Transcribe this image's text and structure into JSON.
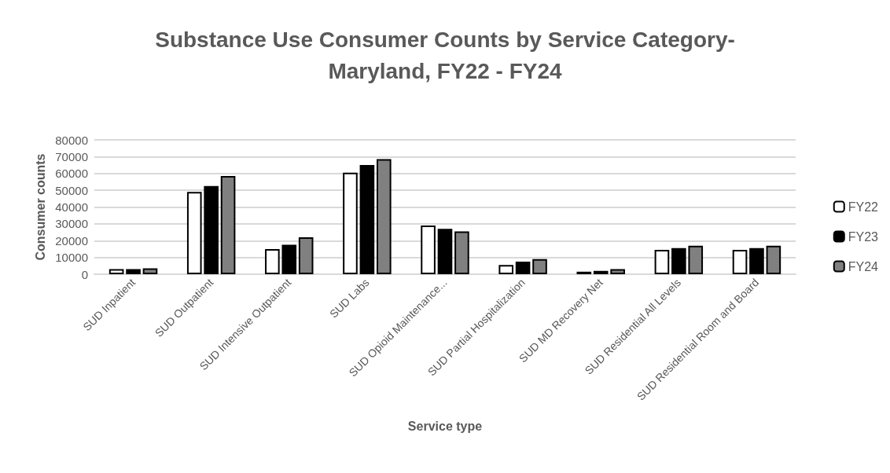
{
  "chart_data": {
    "type": "bar",
    "title": "Substance Use Consumer Counts by Service Category-\nMaryland, FY22 - FY24",
    "xlabel": "Service type",
    "ylabel": "Consumer counts",
    "categories": [
      "SUD Inpatient",
      "SUD Outpatient",
      "SUD Intensive Outpatient",
      "SUD Labs",
      "SUD Opioid Maintenance...",
      "SUD Partial Hospitalization",
      "SUD MD Recovery Net",
      "SUD Residential All Levels",
      "SUD Residential Room and Board"
    ],
    "series": [
      {
        "name": "FY22",
        "color": "#ffffff",
        "values": [
          3000,
          49000,
          15000,
          60500,
          29000,
          5500,
          1500,
          14500,
          14500
        ]
      },
      {
        "name": "FY23",
        "color": "#000000",
        "values": [
          3000,
          52500,
          17500,
          65000,
          27000,
          7500,
          2000,
          15500,
          15500
        ]
      },
      {
        "name": "FY24",
        "color": "#808080",
        "values": [
          3500,
          58500,
          22000,
          68500,
          25500,
          9000,
          3000,
          17000,
          17000
        ]
      }
    ],
    "ylim": [
      0,
      80000
    ],
    "yticks": [
      0,
      10000,
      20000,
      30000,
      40000,
      50000,
      60000,
      70000,
      80000
    ],
    "grid": "y",
    "legend": "right"
  }
}
